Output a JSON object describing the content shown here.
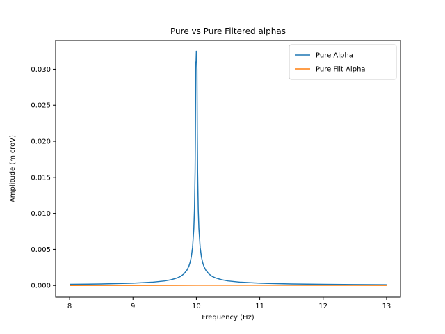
{
  "chart_data": {
    "type": "line",
    "title": "Pure vs Pure Filtered alphas",
    "xlabel": "Frequency (Hz)",
    "ylabel": "Amplitude (microV)",
    "xlim": [
      7.78,
      13.22
    ],
    "ylim": [
      -0.00162,
      0.034
    ],
    "xticks": [
      8,
      9,
      10,
      11,
      12,
      13
    ],
    "yticks": [
      0.0,
      0.005,
      0.01,
      0.015,
      0.02,
      0.025,
      0.03
    ],
    "ytick_labels": [
      "0.000",
      "0.005",
      "0.010",
      "0.015",
      "0.020",
      "0.025",
      "0.030"
    ],
    "legend_position": "top-right",
    "grid": false,
    "series": [
      {
        "name": "Pure Alpha",
        "color": "#1f77b4",
        "x": [
          8.0,
          8.5,
          9.0,
          9.3,
          9.5,
          9.6,
          9.7,
          9.75,
          9.8,
          9.85,
          9.88,
          9.9,
          9.92,
          9.94,
          9.96,
          9.97,
          9.98,
          9.985,
          9.99,
          9.995,
          10.0,
          10.005,
          10.01,
          10.015,
          10.02,
          10.03,
          10.04,
          10.06,
          10.08,
          10.1,
          10.12,
          10.15,
          10.2,
          10.25,
          10.3,
          10.4,
          10.5,
          10.7,
          11.0,
          11.5,
          12.0,
          12.5,
          13.0
        ],
        "y": [
          0.00016,
          0.00021,
          0.00032,
          0.00045,
          0.00063,
          0.00079,
          0.00105,
          0.00126,
          0.00158,
          0.00211,
          0.00263,
          0.00316,
          0.00395,
          0.00526,
          0.00789,
          0.0105,
          0.0158,
          0.021,
          0.031,
          0.031,
          0.0325,
          0.0315,
          0.03,
          0.021,
          0.0158,
          0.0105,
          0.00789,
          0.00526,
          0.00395,
          0.00316,
          0.00263,
          0.00211,
          0.00158,
          0.00126,
          0.00105,
          0.00079,
          0.00063,
          0.00045,
          0.00032,
          0.00021,
          0.00016,
          0.00013,
          0.00011
        ]
      },
      {
        "name": "Pure Filt Alpha",
        "color": "#ff7f0e",
        "x": [
          8.0,
          9.0,
          10.0,
          11.0,
          12.0,
          13.0
        ],
        "y": [
          0.0,
          1e-05,
          3e-05,
          3e-05,
          2e-05,
          1e-05
        ]
      }
    ]
  }
}
